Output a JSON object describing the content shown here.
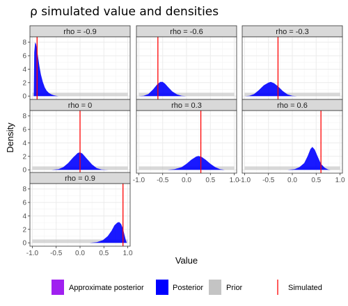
{
  "chart_data": {
    "type": "area",
    "title": "ρ simulated value and densities",
    "xlabel": "Value",
    "ylabel": "Density",
    "xlim": [
      -1.05,
      1.05
    ],
    "ylim": [
      -0.5,
      8.8
    ],
    "x_ticks": [
      -1.0,
      -0.5,
      0.0,
      0.5,
      1.0
    ],
    "x_tick_labels": [
      "-1.0",
      "-0.5",
      "0.0",
      "0.5",
      "1.0"
    ],
    "y_ticks": [
      0,
      2,
      4,
      6,
      8
    ],
    "y_tick_labels": [
      "0",
      "2",
      "4",
      "6",
      "8"
    ],
    "grid": true,
    "legend_position": "bottom",
    "legend": [
      {
        "label": "Approximate posterior",
        "color": "#a020f0",
        "kind": "fill"
      },
      {
        "label": "Posterior",
        "color": "#0000ff",
        "kind": "fill"
      },
      {
        "label": "Prior",
        "color": "#bebebe",
        "kind": "fill"
      },
      {
        "label": "Simulated",
        "color": "#ff0000",
        "kind": "line"
      }
    ],
    "prior_density": 0.5,
    "facets": [
      {
        "label": "rho = -0.9",
        "simulated": -0.9,
        "posterior": [
          [
            -0.97,
            0
          ],
          [
            -0.96,
            6.5
          ],
          [
            -0.94,
            8
          ],
          [
            -0.92,
            7.7
          ],
          [
            -0.9,
            6.8
          ],
          [
            -0.88,
            5.8
          ],
          [
            -0.85,
            4.4
          ],
          [
            -0.82,
            3.2
          ],
          [
            -0.78,
            2.1
          ],
          [
            -0.74,
            1.3
          ],
          [
            -0.7,
            0.8
          ],
          [
            -0.65,
            0.45
          ],
          [
            -0.6,
            0.25
          ],
          [
            -0.55,
            0.12
          ],
          [
            -0.5,
            0.05
          ],
          [
            -0.45,
            0
          ]
        ]
      },
      {
        "label": "rho = -0.6",
        "simulated": -0.6,
        "posterior": [
          [
            -1.0,
            0
          ],
          [
            -0.9,
            0.05
          ],
          [
            -0.8,
            0.3
          ],
          [
            -0.7,
            1.0
          ],
          [
            -0.62,
            1.7
          ],
          [
            -0.55,
            2.1
          ],
          [
            -0.5,
            2.1
          ],
          [
            -0.45,
            1.85
          ],
          [
            -0.38,
            1.3
          ],
          [
            -0.3,
            0.7
          ],
          [
            -0.2,
            0.25
          ],
          [
            -0.1,
            0.05
          ],
          [
            0.0,
            0
          ]
        ]
      },
      {
        "label": "rho = -0.3",
        "simulated": -0.3,
        "posterior": [
          [
            -1.0,
            0
          ],
          [
            -0.9,
            0.05
          ],
          [
            -0.8,
            0.3
          ],
          [
            -0.7,
            0.9
          ],
          [
            -0.6,
            1.6
          ],
          [
            -0.5,
            2.0
          ],
          [
            -0.45,
            2.1
          ],
          [
            -0.38,
            1.9
          ],
          [
            -0.3,
            1.45
          ],
          [
            -0.2,
            0.75
          ],
          [
            -0.1,
            0.25
          ],
          [
            0.0,
            0.05
          ],
          [
            0.1,
            0
          ]
        ]
      },
      {
        "label": "rho = 0",
        "simulated": 0.0,
        "posterior": [
          [
            -0.6,
            0
          ],
          [
            -0.45,
            0.1
          ],
          [
            -0.35,
            0.4
          ],
          [
            -0.25,
            1.0
          ],
          [
            -0.15,
            1.8
          ],
          [
            -0.05,
            2.5
          ],
          [
            0.0,
            2.6
          ],
          [
            0.05,
            2.4
          ],
          [
            0.15,
            1.6
          ],
          [
            0.25,
            0.8
          ],
          [
            0.35,
            0.25
          ],
          [
            0.45,
            0.05
          ],
          [
            0.6,
            0
          ]
        ]
      },
      {
        "label": "rho = 0.3",
        "simulated": 0.3,
        "posterior": [
          [
            -0.4,
            0
          ],
          [
            -0.25,
            0.1
          ],
          [
            -0.1,
            0.4
          ],
          [
            0.0,
            0.9
          ],
          [
            0.1,
            1.5
          ],
          [
            0.2,
            1.95
          ],
          [
            0.25,
            2.05
          ],
          [
            0.32,
            1.9
          ],
          [
            0.4,
            1.5
          ],
          [
            0.5,
            0.9
          ],
          [
            0.6,
            0.4
          ],
          [
            0.7,
            0.1
          ],
          [
            0.8,
            0
          ]
        ]
      },
      {
        "label": "rho = 0.6",
        "simulated": 0.6,
        "posterior": [
          [
            -0.1,
            0
          ],
          [
            0.05,
            0.1
          ],
          [
            0.15,
            0.4
          ],
          [
            0.25,
            1.0
          ],
          [
            0.32,
            2.0
          ],
          [
            0.38,
            3.1
          ],
          [
            0.42,
            3.4
          ],
          [
            0.47,
            3.0
          ],
          [
            0.53,
            2.0
          ],
          [
            0.6,
            0.9
          ],
          [
            0.68,
            0.3
          ],
          [
            0.75,
            0.05
          ],
          [
            0.8,
            0
          ]
        ]
      },
      {
        "label": "rho = 0.9",
        "simulated": 0.9,
        "posterior": [
          [
            0.2,
            0
          ],
          [
            0.35,
            0.1
          ],
          [
            0.48,
            0.4
          ],
          [
            0.58,
            1.0
          ],
          [
            0.66,
            1.8
          ],
          [
            0.72,
            2.6
          ],
          [
            0.78,
            3.0
          ],
          [
            0.82,
            3.1
          ],
          [
            0.86,
            2.8
          ],
          [
            0.9,
            2.1
          ],
          [
            0.93,
            1.2
          ],
          [
            0.96,
            0.4
          ],
          [
            0.98,
            0
          ]
        ]
      }
    ]
  }
}
